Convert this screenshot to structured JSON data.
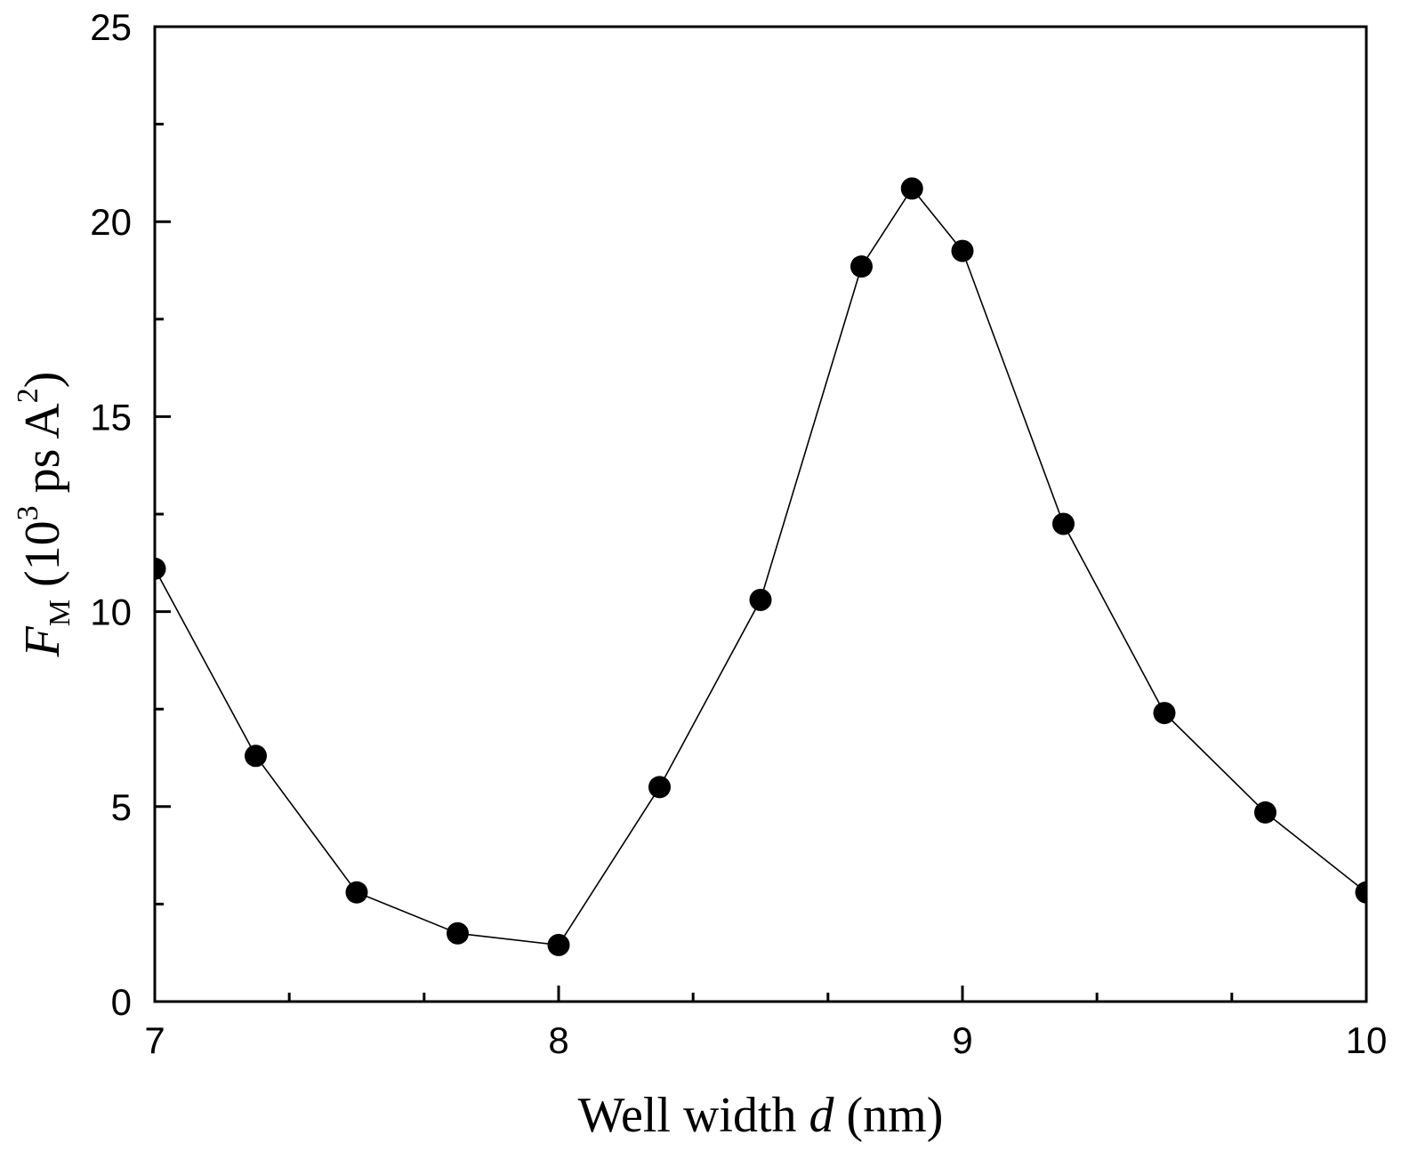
{
  "chart_data": {
    "type": "line",
    "title": "",
    "xlabel": {
      "prefix": "Well width ",
      "variable": "d",
      "suffix": " (nm)"
    },
    "ylabel": {
      "variable": "F",
      "subscript": "M",
      "open": " (10",
      "exponent": "3",
      "middle": " ps A",
      "exponent2": "2",
      "close": ")"
    },
    "xlim": [
      7,
      10
    ],
    "ylim": [
      0,
      25
    ],
    "x_ticks": [
      7,
      8,
      9,
      10
    ],
    "x_minor_ticks": [
      7.333,
      7.667,
      8.333,
      8.667,
      9.333,
      9.667
    ],
    "y_ticks": [
      0,
      5,
      10,
      15,
      20,
      25
    ],
    "y_minor_ticks": [
      2.5,
      7.5,
      12.5,
      17.5,
      22.5
    ],
    "grid": false,
    "series": [
      {
        "name": "F_M",
        "color": "#000000",
        "marker": "filled-circle",
        "x": [
          7.0,
          7.25,
          7.5,
          7.75,
          8.0,
          8.25,
          8.5,
          8.75,
          8.875,
          9.0,
          9.25,
          9.5,
          9.75,
          10.0
        ],
        "y": [
          11.1,
          6.3,
          2.8,
          1.75,
          1.45,
          5.5,
          10.3,
          18.85,
          20.85,
          19.25,
          12.25,
          7.4,
          4.85,
          2.8
        ]
      }
    ]
  }
}
